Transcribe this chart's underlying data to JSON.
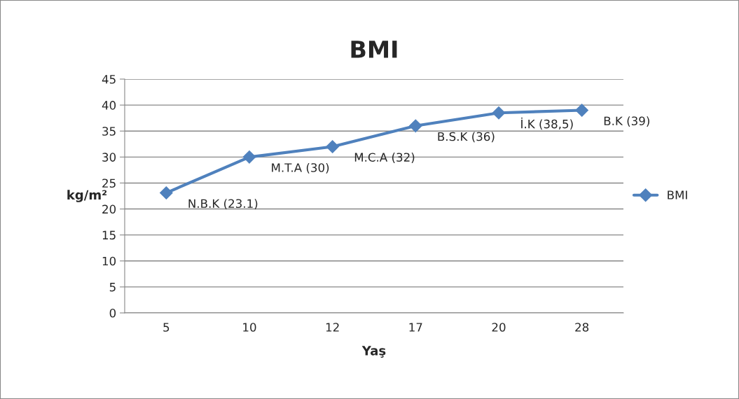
{
  "chart_data": {
    "type": "line",
    "title": "BMI",
    "xlabel": "Yaş",
    "ylabel": "kg/m²",
    "categories": [
      "5",
      "10",
      "12",
      "17",
      "20",
      "28"
    ],
    "series": [
      {
        "name": "BMI",
        "color": "#4f81bd",
        "values": [
          23.1,
          30,
          32,
          36,
          38.5,
          39
        ],
        "value_labels": [
          "N.B.K (23.1)",
          "M.T.A (30)",
          "M.C.A (32)",
          "B.S.K (36)",
          "İ.K (38,5)",
          "B.K (39)"
        ]
      }
    ],
    "ylim": [
      0,
      45
    ],
    "yticks": [
      0,
      5,
      10,
      15,
      20,
      25,
      30,
      35,
      40,
      45
    ],
    "grid": "y",
    "legend": "right",
    "marker": "diamond",
    "line_style": "solid"
  }
}
